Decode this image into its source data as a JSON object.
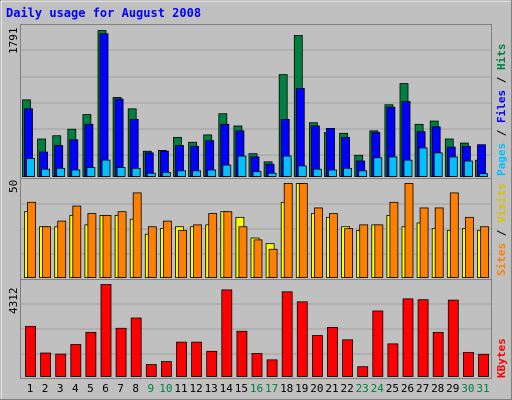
{
  "chart_data": [
    {
      "type": "bar",
      "title": "Daily usage for August 2008",
      "categories": [
        "1",
        "2",
        "3",
        "4",
        "5",
        "6",
        "7",
        "8",
        "9",
        "10",
        "11",
        "12",
        "13",
        "14",
        "15",
        "16",
        "17",
        "18",
        "19",
        "20",
        "21",
        "22",
        "23",
        "24",
        "25",
        "26",
        "27",
        "28",
        "29",
        "30",
        "31"
      ],
      "weekend_categories": [
        "9",
        "10",
        "16",
        "17",
        "23",
        "24",
        "30",
        "31"
      ],
      "ymax_label": "1791",
      "ylim": [
        0,
        1791
      ],
      "legend": [
        {
          "name": "Pages",
          "color": "#00c0ff"
        },
        {
          "name": "Files",
          "color": "#0000ff"
        },
        {
          "name": "Hits",
          "color": "#008040"
        }
      ],
      "series": [
        {
          "name": "Hits",
          "color": "#008040",
          "values": [
            940,
            460,
            500,
            580,
            760,
            1791,
            970,
            830,
            310,
            320,
            480,
            420,
            510,
            770,
            620,
            280,
            180,
            1250,
            1730,
            660,
            540,
            530,
            260,
            560,
            880,
            1140,
            640,
            680,
            460,
            410,
            200
          ]
        },
        {
          "name": "Files",
          "color": "#0000ff",
          "values": [
            830,
            300,
            380,
            450,
            640,
            1750,
            950,
            700,
            290,
            310,
            380,
            370,
            440,
            640,
            560,
            240,
            150,
            700,
            1080,
            620,
            590,
            480,
            190,
            540,
            850,
            920,
            550,
            610,
            360,
            370,
            390
          ]
        },
        {
          "name": "Pages",
          "color": "#00c0ff",
          "values": [
            220,
            90,
            100,
            80,
            110,
            200,
            110,
            100,
            40,
            50,
            70,
            70,
            80,
            140,
            250,
            60,
            40,
            250,
            130,
            90,
            80,
            100,
            70,
            230,
            240,
            200,
            350,
            290,
            240,
            190,
            35
          ]
        }
      ]
    },
    {
      "type": "bar",
      "categories": [
        "1",
        "2",
        "3",
        "4",
        "5",
        "6",
        "7",
        "8",
        "9",
        "10",
        "11",
        "12",
        "13",
        "14",
        "15",
        "16",
        "17",
        "18",
        "19",
        "20",
        "21",
        "22",
        "23",
        "24",
        "25",
        "26",
        "27",
        "28",
        "29",
        "30",
        "31"
      ],
      "ymax_label": "50",
      "ylim": [
        0,
        50
      ],
      "legend": [
        {
          "name": "Sites",
          "color": "#ff8000"
        },
        {
          "name": "Visits",
          "color": "#ffff00"
        }
      ],
      "series": [
        {
          "name": "Visits",
          "color": "#ffff00",
          "values": [
            35,
            27,
            27,
            33,
            28,
            33,
            33,
            31,
            23,
            26,
            27,
            27,
            28,
            35,
            32,
            21,
            18,
            40,
            50,
            34,
            32,
            27,
            25,
            28,
            33,
            27,
            29,
            26,
            25,
            26,
            25
          ]
        },
        {
          "name": "Sites",
          "color": "#ff8000",
          "values": [
            40,
            27,
            30,
            38,
            34,
            33,
            35,
            45,
            27,
            30,
            25,
            28,
            34,
            35,
            27,
            20,
            15,
            50,
            50,
            37,
            34,
            26,
            28,
            28,
            40,
            50,
            37,
            37,
            45,
            32,
            27
          ]
        }
      ]
    },
    {
      "type": "bar",
      "categories": [
        "1",
        "2",
        "3",
        "4",
        "5",
        "6",
        "7",
        "8",
        "9",
        "10",
        "11",
        "12",
        "13",
        "14",
        "15",
        "16",
        "17",
        "18",
        "19",
        "20",
        "21",
        "22",
        "23",
        "24",
        "25",
        "26",
        "27",
        "28",
        "29",
        "30",
        "31"
      ],
      "ymax_label": "4312",
      "ylim": [
        0,
        4312
      ],
      "legend": [
        {
          "name": "KBytes",
          "color": "#ff0000"
        }
      ],
      "series": [
        {
          "name": "KBytes",
          "color": "#ff0000",
          "values": [
            2350,
            1100,
            1050,
            1500,
            2070,
            4312,
            2260,
            2740,
            560,
            700,
            1610,
            1610,
            1180,
            4060,
            2120,
            1080,
            780,
            3970,
            3500,
            1920,
            2300,
            1720,
            460,
            3070,
            1530,
            3640,
            3600,
            2070,
            3580,
            1130,
            1040
          ]
        }
      ]
    }
  ]
}
